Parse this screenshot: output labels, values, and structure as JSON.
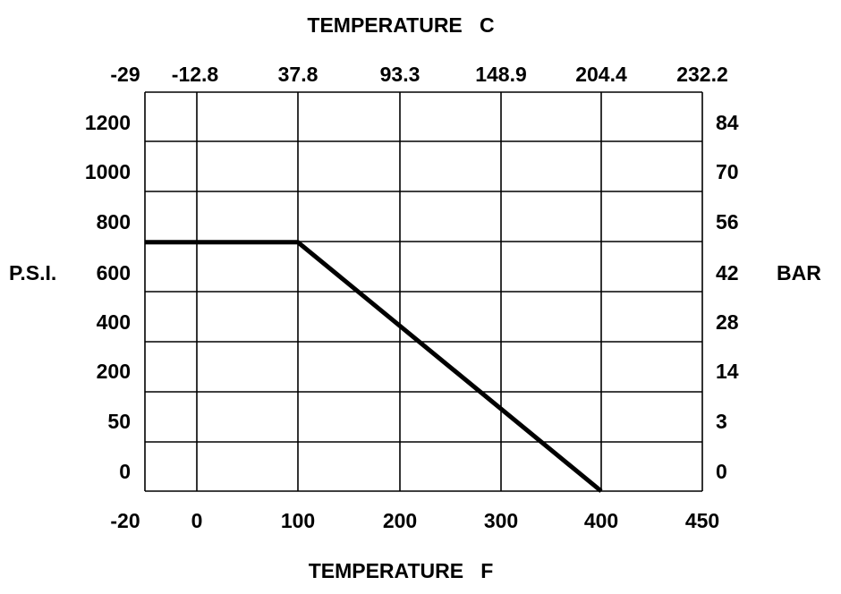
{
  "chart_data": {
    "type": "line",
    "title_top": "TEMPERATURE   C",
    "xlabel": "TEMPERATURE   F",
    "ylabel_left": "P.S.I.",
    "ylabel_right": "BAR",
    "x_ticks": [
      "-20",
      "0",
      "100",
      "200",
      "300",
      "400",
      "450"
    ],
    "x_ticks_top": [
      "-29",
      "-12.8",
      "37.8",
      "93.3",
      "148.9",
      "204.4",
      "232.2"
    ],
    "y_ticks_left": [
      "0",
      "50",
      "200",
      "400",
      "600",
      "800",
      "1000",
      "1200"
    ],
    "y_ticks_right": [
      "0",
      "3",
      "14",
      "28",
      "42",
      "56",
      "70",
      "84"
    ],
    "grid": true,
    "series": [
      {
        "x": [
          -20,
          100,
          400
        ],
        "y": [
          720,
          720,
          0
        ]
      }
    ],
    "line_color": "#000000"
  }
}
